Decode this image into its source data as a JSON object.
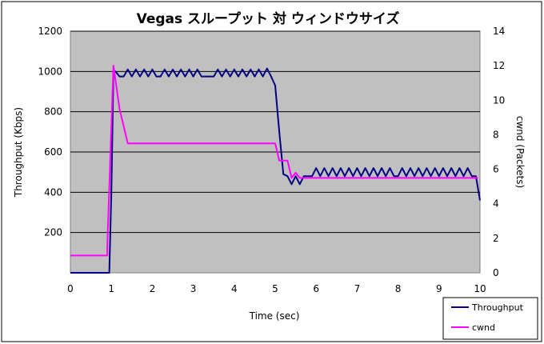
{
  "chart_data": {
    "type": "line",
    "title": "Vegas スループット 対 ウィンドウサイズ",
    "xlabel": "Time (sec)",
    "ylabel": "Throughput (Kbps)",
    "y2label": "cwnd (Packets)",
    "xlim": [
      0,
      10
    ],
    "ylim": [
      0,
      1200
    ],
    "y2lim": [
      0,
      14
    ],
    "xticks": [
      "0",
      "1",
      "2",
      "3",
      "4",
      "5",
      "6",
      "7",
      "8",
      "9",
      "10"
    ],
    "yticks": [
      "200",
      "400",
      "600",
      "800",
      "1000",
      "1200"
    ],
    "y2ticks": [
      "0",
      "2",
      "4",
      "6",
      "8",
      "10",
      "12",
      "14"
    ],
    "grid": true,
    "legend": "bottom-right",
    "plot_background": "#c0c0c0",
    "series": [
      {
        "name": "Throughput",
        "axis": "left",
        "color": "#000080",
        "x": [
          0,
          0.5,
          0.9,
          0.95,
          1.0,
          1.05,
          1.1,
          1.2,
          1.3,
          1.4,
          1.5,
          1.6,
          1.7,
          1.8,
          1.9,
          2.0,
          2.1,
          2.2,
          2.3,
          2.4,
          2.5,
          2.6,
          2.7,
          2.8,
          2.9,
          3.0,
          3.1,
          3.2,
          3.3,
          3.4,
          3.5,
          3.6,
          3.7,
          3.8,
          3.9,
          4.0,
          4.1,
          4.2,
          4.3,
          4.4,
          4.5,
          4.6,
          4.7,
          4.8,
          4.9,
          5.0,
          5.1,
          5.2,
          5.3,
          5.4,
          5.5,
          5.6,
          5.7,
          5.8,
          5.9,
          6.0,
          6.1,
          6.2,
          6.3,
          6.4,
          6.5,
          6.6,
          6.7,
          6.8,
          6.9,
          7.0,
          7.1,
          7.2,
          7.3,
          7.4,
          7.5,
          7.6,
          7.7,
          7.8,
          7.9,
          8.0,
          8.1,
          8.2,
          8.3,
          8.4,
          8.5,
          8.6,
          8.7,
          8.8,
          8.9,
          9.0,
          9.1,
          9.2,
          9.3,
          9.4,
          9.5,
          9.6,
          9.7,
          9.8,
          9.9,
          10.0
        ],
        "values": [
          0,
          0,
          0,
          0,
          400,
          1000,
          1000,
          975,
          975,
          1010,
          975,
          1010,
          975,
          1010,
          975,
          1010,
          975,
          975,
          1010,
          975,
          1010,
          975,
          1010,
          975,
          1010,
          975,
          1010,
          975,
          975,
          975,
          975,
          1010,
          975,
          1010,
          975,
          1010,
          975,
          1010,
          975,
          1010,
          975,
          1010,
          975,
          1015,
          975,
          930,
          700,
          490,
          480,
          440,
          480,
          440,
          480,
          480,
          480,
          520,
          480,
          520,
          480,
          520,
          480,
          520,
          480,
          520,
          480,
          520,
          480,
          520,
          480,
          520,
          480,
          520,
          480,
          520,
          480,
          480,
          520,
          480,
          520,
          480,
          520,
          480,
          520,
          480,
          520,
          480,
          520,
          480,
          520,
          480,
          520,
          480,
          520,
          480,
          480,
          360
        ]
      },
      {
        "name": "cwnd",
        "axis": "right",
        "color": "#ff00ff",
        "x": [
          0,
          0.9,
          0.9,
          1.05,
          1.1,
          1.2,
          1.3,
          1.4,
          2.0,
          3.0,
          4.0,
          4.5,
          5.0,
          5.1,
          5.3,
          5.4,
          5.5,
          5.6,
          6.0,
          7.0,
          8.0,
          9.0,
          9.9,
          9.95
        ],
        "values": [
          1.0,
          1.0,
          1.5,
          12.0,
          11.2,
          9.5,
          8.5,
          7.5,
          7.5,
          7.5,
          7.5,
          7.5,
          7.5,
          6.5,
          6.5,
          5.5,
          5.8,
          5.5,
          5.5,
          5.5,
          5.5,
          5.5,
          5.5,
          5.5
        ]
      }
    ]
  }
}
